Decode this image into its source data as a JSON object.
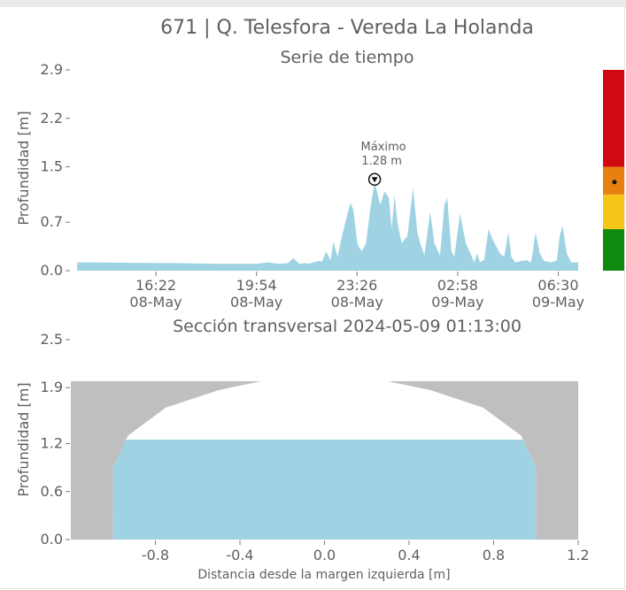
{
  "header": {
    "title": "671 | Q. Telesfora - Vereda La Holanda"
  },
  "chart_data": [
    {
      "type": "area",
      "subtitle": "Serie de tiempo",
      "ylabel": "Profundidad [m]",
      "xlabel": "",
      "ylim": [
        0,
        2.9
      ],
      "yticks": [
        "0.0",
        "0.7",
        "1.5",
        "2.2",
        "2.9"
      ],
      "xticks": [
        {
          "time": "16:22",
          "date": "08-May"
        },
        {
          "time": "19:54",
          "date": "08-May"
        },
        {
          "time": "23:26",
          "date": "08-May"
        },
        {
          "time": "02:58",
          "date": "09-May"
        },
        {
          "time": "06:30",
          "date": "09-May"
        }
      ],
      "x_hours": [
        13.6,
        14.0,
        16.37,
        17.0,
        18.5,
        19.9,
        20.3,
        20.7,
        21.0,
        21.2,
        21.4,
        21.6,
        21.7,
        21.9,
        22.1,
        22.2,
        22.35,
        22.5,
        22.6,
        22.75,
        22.9,
        23.2,
        23.3,
        23.45,
        23.6,
        23.75,
        23.9,
        24.05,
        24.25,
        24.4,
        24.55,
        24.65,
        24.75,
        24.85,
        25.0,
        25.2,
        25.4,
        25.55,
        25.65,
        25.8,
        26.0,
        26.15,
        26.35,
        26.5,
        26.6,
        26.75,
        26.85,
        27.05,
        27.25,
        27.45,
        27.55,
        27.65,
        27.75,
        27.9,
        28.05,
        28.2,
        28.45,
        28.6,
        28.75,
        28.85,
        29.0,
        29.2,
        29.4,
        29.55,
        29.7,
        29.85,
        30.0,
        30.25,
        30.45,
        30.55,
        30.65,
        30.8,
        30.95,
        31.2
      ],
      "values": [
        0.12,
        0.12,
        0.11,
        0.11,
        0.1,
        0.1,
        0.12,
        0.1,
        0.11,
        0.18,
        0.1,
        0.11,
        0.1,
        0.12,
        0.14,
        0.13,
        0.28,
        0.15,
        0.42,
        0.2,
        0.5,
        0.98,
        0.88,
        0.38,
        0.28,
        0.4,
        0.9,
        1.28,
        0.95,
        1.15,
        1.05,
        0.6,
        1.1,
        0.7,
        0.4,
        0.5,
        1.2,
        0.55,
        0.4,
        0.22,
        0.85,
        0.4,
        0.22,
        0.95,
        1.05,
        0.28,
        0.2,
        0.82,
        0.4,
        0.22,
        0.12,
        0.25,
        0.12,
        0.16,
        0.6,
        0.45,
        0.25,
        0.2,
        0.55,
        0.2,
        0.12,
        0.14,
        0.15,
        0.12,
        0.55,
        0.25,
        0.14,
        0.12,
        0.15,
        0.5,
        0.65,
        0.25,
        0.12,
        0.12
      ],
      "annotation": {
        "label": "Máximo",
        "value_text": "1.28 m",
        "x_hour": 24.05,
        "y": 1.28
      },
      "fill_color": "#9fd3e3",
      "alert_scale": {
        "levels": [
          {
            "name": "verde",
            "from": 0.0,
            "to": 0.6,
            "color": "#0e8a0e"
          },
          {
            "name": "amarillo",
            "from": 0.6,
            "to": 1.1,
            "color": "#f5c518"
          },
          {
            "name": "naranja",
            "from": 1.1,
            "to": 1.5,
            "color": "#e88010"
          },
          {
            "name": "rojo",
            "from": 1.5,
            "to": 2.9,
            "color": "#d10a12"
          }
        ],
        "current_level": 1.28
      }
    },
    {
      "type": "area",
      "subtitle": "Sección transversal 2024-05-09 01:13:00",
      "xlabel": "Distancia desde la margen izquierda [m]",
      "ylabel": "Profundidad [m]",
      "xlim": [
        -1.2,
        1.2
      ],
      "ylim": [
        0,
        2.5
      ],
      "xticks": [
        "-0.8",
        "-0.4",
        "0.0",
        "0.4",
        "0.8",
        "1.2"
      ],
      "yticks": [
        "0.0",
        "0.6",
        "1.2",
        "1.9",
        "2.5"
      ],
      "water_level": 1.25,
      "bank_top": 1.98,
      "channel_profile_x": [
        -1.0,
        -1.0,
        -0.93,
        -0.75,
        -0.5,
        -0.3,
        0.3,
        0.5,
        0.75,
        0.93,
        1.0,
        1.0
      ],
      "channel_profile_y": [
        0.0,
        0.9,
        1.3,
        1.65,
        1.87,
        1.98,
        1.98,
        1.87,
        1.65,
        1.3,
        0.9,
        0.0
      ],
      "water_color": "#9fd3e3",
      "bank_color": "#bfbfbf"
    }
  ]
}
